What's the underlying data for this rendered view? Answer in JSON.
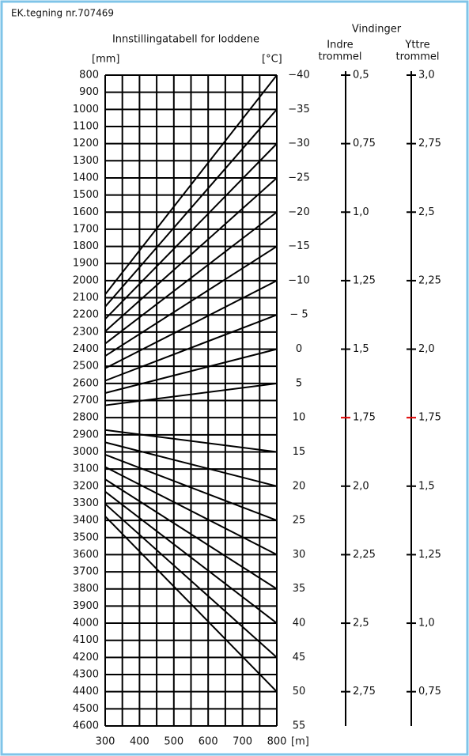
{
  "header": "EK.tegning nr.707469",
  "title": "Innstillingatabell for loddene",
  "mm_unit": "[mm]",
  "temp_unit": "[°C]",
  "m_unit": "[m]",
  "mm_labels": [
    "800",
    "900",
    "1000",
    "1100",
    "1200",
    "1300",
    "1400",
    "1500",
    "1600",
    "1700",
    "1800",
    "1900",
    "2000",
    "2100",
    "2200",
    "2300",
    "2400",
    "2500",
    "2600",
    "2700",
    "2800",
    "2900",
    "3000",
    "3100",
    "3200",
    "3300",
    "3400",
    "3500",
    "3600",
    "3700",
    "3800",
    "3900",
    "4000",
    "4100",
    "4200",
    "4300",
    "4400",
    "4500",
    "4600"
  ],
  "m_labels": [
    "300",
    "400",
    "500",
    "600",
    "700",
    "800"
  ],
  "temp_labels": [
    "−40",
    "−35",
    "−30",
    "−25",
    "−20",
    "−15",
    "−10",
    "− 5",
    "0",
    "5",
    "10",
    "15",
    "20",
    "25",
    "30",
    "35",
    "40",
    "45",
    "50",
    "55"
  ],
  "vindinger": "Vindinger",
  "indre_title": [
    "Indre",
    "trommel"
  ],
  "indre_labels": [
    "0,5",
    "0,75",
    "1,0",
    "1,25",
    "1,5",
    "1,75",
    "2,0",
    "2,25",
    "2,5",
    "2,75"
  ],
  "yttre_title": [
    "Yttre",
    "trommel"
  ],
  "yttre_labels": [
    "3,0",
    "2,75",
    "2,5",
    "2,25",
    "2,0",
    "1,75",
    "1,5",
    "1,25",
    "1,0",
    "0,75"
  ],
  "highlight_color": "#e00000"
}
